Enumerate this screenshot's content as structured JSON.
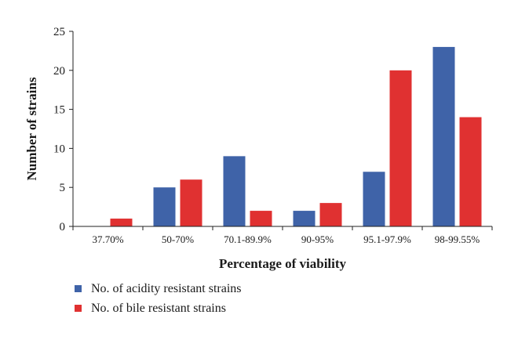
{
  "chart_data": {
    "type": "bar",
    "categories": [
      "37.70%",
      "50-70%",
      "70.1-89.9%",
      "90-95%",
      "95.1-97.9%",
      "98-99.55%"
    ],
    "series": [
      {
        "name": "No. of acidity resistant strains",
        "values": [
          0,
          5,
          9,
          2,
          7,
          23
        ],
        "color": "#3f63a8"
      },
      {
        "name": "No. of bile resistant strains",
        "values": [
          1,
          6,
          2,
          3,
          20,
          14
        ],
        "color": "#e03131"
      }
    ],
    "title": "",
    "xlabel": "Percentage of viability",
    "ylabel": "Number of strains",
    "ylim": [
      0,
      25
    ],
    "yticks": [
      0,
      5,
      10,
      15,
      20,
      25
    ],
    "grid": false,
    "legend_placement": "bottom-left"
  }
}
